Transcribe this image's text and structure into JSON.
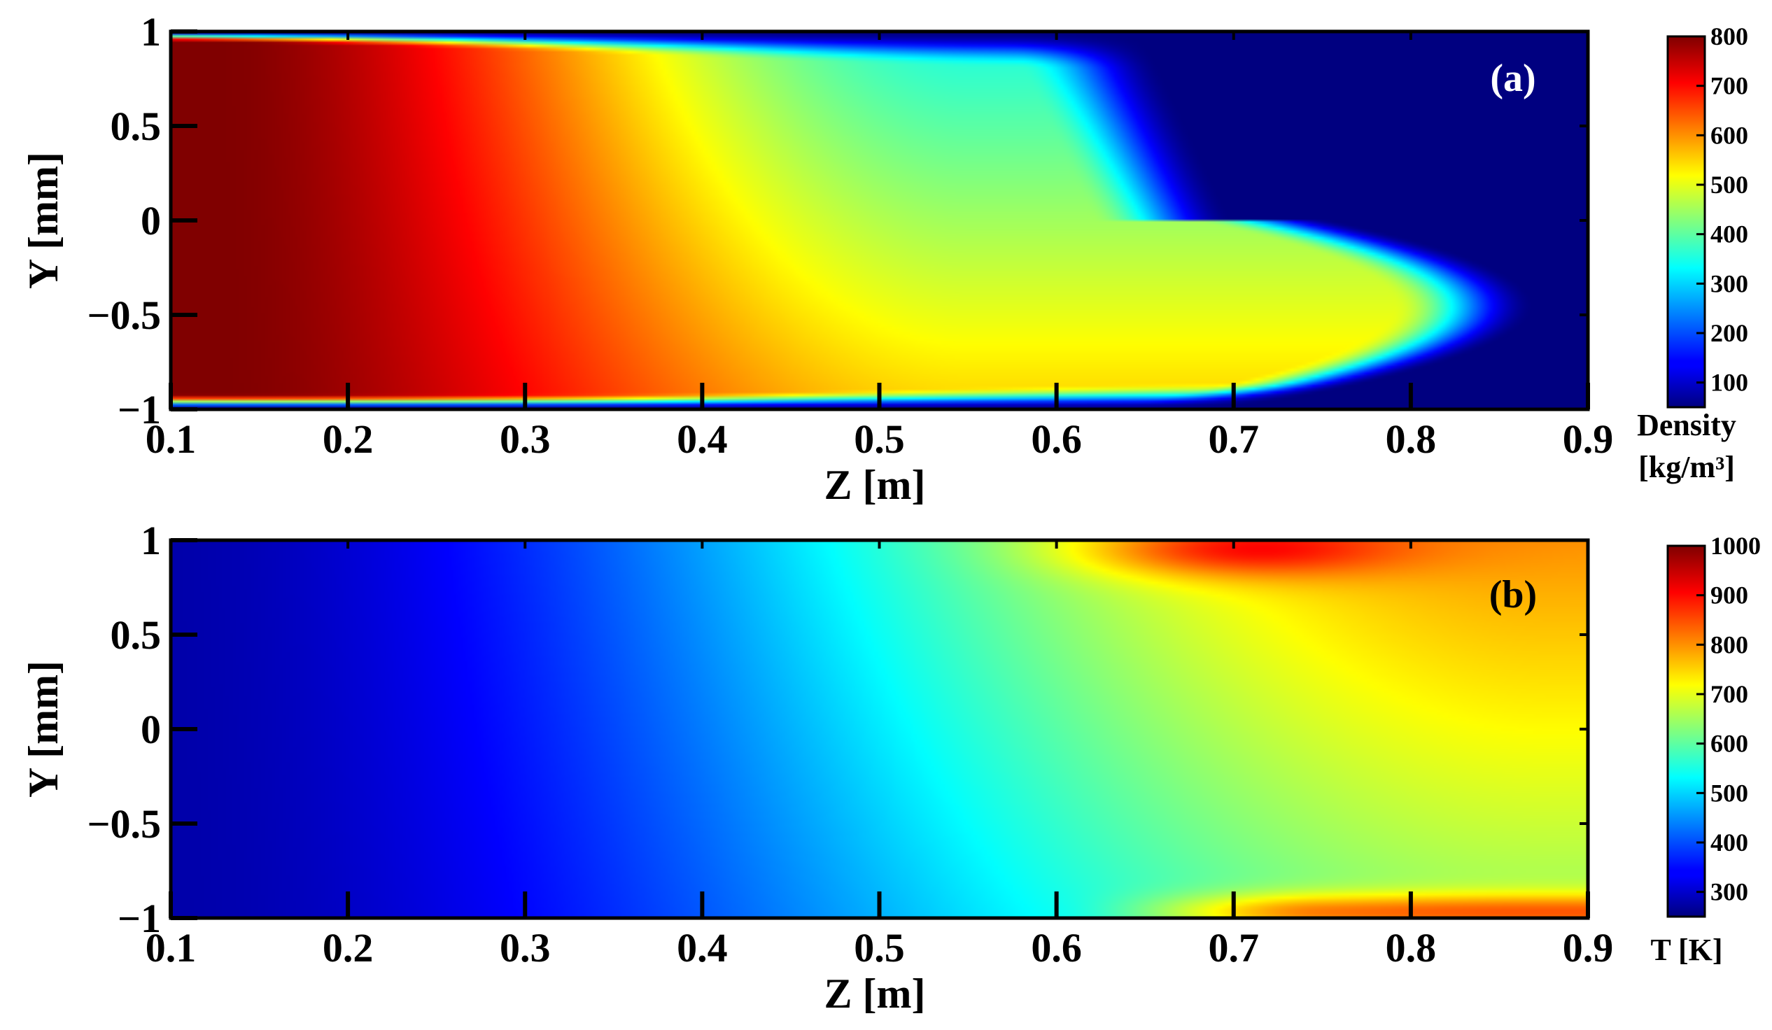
{
  "chart_data": [
    {
      "type": "heatmap",
      "panel_label": "(a)",
      "xlabel": "Z [m]",
      "ylabel": "Y [mm]",
      "xlim": [
        0.1,
        0.9
      ],
      "ylim": [
        -1,
        1
      ],
      "x_ticks": [
        "0.1",
        "0.2",
        "0.3",
        "0.4",
        "0.5",
        "0.6",
        "0.7",
        "0.8",
        "0.9"
      ],
      "y_ticks": [
        "1",
        "0.5",
        "0",
        "−0.5",
        "−1"
      ],
      "colorbar": {
        "title_lines": [
          "Density",
          "[kg/m³]"
        ],
        "range": [
          50,
          800
        ],
        "tick_values": [
          800,
          700,
          600,
          500,
          400,
          300,
          200,
          100
        ],
        "tick_labels": [
          "800",
          "700",
          "600",
          "500",
          "400",
          "300",
          "200",
          "100"
        ],
        "colormap": "jet"
      },
      "field_description": "Density is about 800 kg/m3 near the inlet (Z=0.1) and decreases along Z; the high-density core persists longer on the lower side (Y<0); drops to about 50-100 kg/m3 beyond Z~0.65 at the top and Z~0.8 at the bottom; thin low-density layers at both walls."
    },
    {
      "type": "heatmap",
      "panel_label": "(b)",
      "xlabel": "Z [m]",
      "ylabel": "Y [mm]",
      "xlim": [
        0.1,
        0.9
      ],
      "ylim": [
        -1,
        1
      ],
      "x_ticks": [
        "0.1",
        "0.2",
        "0.3",
        "0.4",
        "0.5",
        "0.6",
        "0.7",
        "0.8",
        "0.9"
      ],
      "y_ticks": [
        "1",
        "0.5",
        "0",
        "−0.5",
        "−1"
      ],
      "colorbar": {
        "title_lines": [
          "T [K]"
        ],
        "range": [
          250,
          1000
        ],
        "tick_values": [
          1000,
          900,
          800,
          700,
          600,
          500,
          400,
          300
        ],
        "tick_labels": [
          "1000",
          "900",
          "800",
          "700",
          "600",
          "500",
          "400",
          "300"
        ],
        "colormap": "jet"
      },
      "field_description": "Temperature rises from about 280 K at the inlet to about 720 K near the outlet; hot wall layers (about 800-900 K) near Y=1 for Z 0.62-0.8 and near Y=-1 for Z 0.65-0.9."
    }
  ]
}
